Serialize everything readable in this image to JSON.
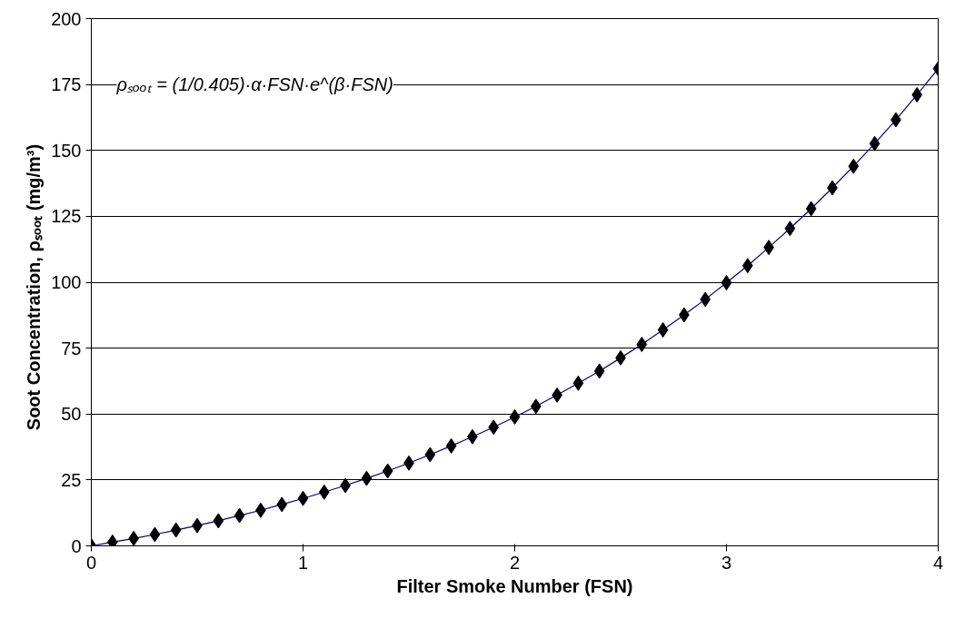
{
  "chart_data": {
    "type": "line",
    "xlabel": "Filter Smoke Number (FSN)",
    "ylabel": "Soot Concentration,  ρₛₒₒₜ  (mg/m³)",
    "x": [
      0,
      0.1,
      0.2,
      0.3,
      0.4,
      0.5,
      0.6,
      0.7,
      0.8,
      0.9,
      1.0,
      1.1,
      1.2,
      1.3,
      1.4,
      1.5,
      1.6,
      1.7,
      1.8,
      1.9,
      2.0,
      2.1,
      2.2,
      2.3,
      2.4,
      2.5,
      2.6,
      2.7,
      2.8,
      2.9,
      3.0,
      3.1,
      3.2,
      3.3,
      3.4,
      3.5,
      3.6,
      3.7,
      3.8,
      3.9,
      4.0
    ],
    "series": [
      {
        "color": "#000000",
        "values": [
          0,
          1.4,
          2.8,
          4.3,
          6,
          7.7,
          9.5,
          11.5,
          13.5,
          15.7,
          18,
          20.4,
          22.9,
          25.6,
          28.4,
          31.4,
          34.6,
          37.9,
          41.4,
          45,
          48.9,
          52.9,
          57.2,
          61.7,
          66.3,
          71.3,
          76.4,
          81.9,
          87.6,
          93.5,
          99.8,
          106.3,
          113.2,
          120.4,
          127.9,
          135.8,
          144,
          152.6,
          161.6,
          171.1,
          181
        ]
      }
    ],
    "marker": "diamond",
    "line_style": "solid",
    "xlim": [
      0,
      4
    ],
    "xticks": [
      0,
      1,
      2,
      3,
      4
    ],
    "ylim": [
      0,
      200
    ],
    "yticks": [
      0,
      25,
      50,
      75,
      100,
      125,
      150,
      175,
      200
    ],
    "grid": "y",
    "annotations": [
      "ρₛₒₒₜ = (1/0.405)·α·FSN·e^(β·FSN)"
    ]
  }
}
